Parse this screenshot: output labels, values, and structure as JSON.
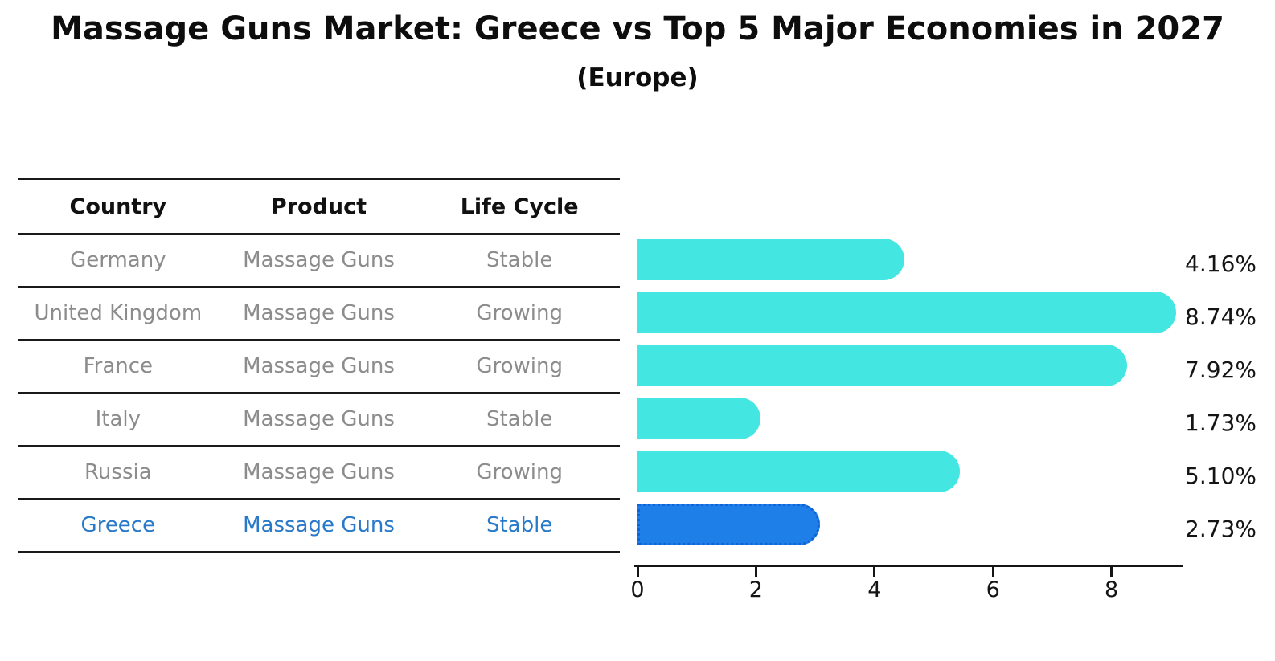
{
  "header": {
    "title": "Massage Guns Market: Greece vs Top 5 Major Economies in 2027",
    "subtitle": "(Europe)"
  },
  "table": {
    "columns": [
      "Country",
      "Product",
      "Life Cycle"
    ],
    "rows": [
      {
        "country": "Germany",
        "product": "Massage Guns",
        "life_cycle": "Stable",
        "highlight": false
      },
      {
        "country": "United Kingdom",
        "product": "Massage Guns",
        "life_cycle": "Growing",
        "highlight": false
      },
      {
        "country": "France",
        "product": "Massage Guns",
        "life_cycle": "Growing",
        "highlight": false
      },
      {
        "country": "Italy",
        "product": "Massage Guns",
        "life_cycle": "Stable",
        "highlight": false
      },
      {
        "country": "Russia",
        "product": "Massage Guns",
        "life_cycle": "Growing",
        "highlight": false
      },
      {
        "country": "Greece",
        "product": "Massage Guns",
        "life_cycle": "Stable",
        "highlight": true
      }
    ]
  },
  "chart_data": {
    "type": "bar",
    "orientation": "horizontal",
    "title": "Massage Guns Market: Greece vs Top 5 Major Economies in 2027 (Europe)",
    "categories": [
      "Germany",
      "United Kingdom",
      "France",
      "Italy",
      "Russia",
      "Greece"
    ],
    "values": [
      4.16,
      8.74,
      7.92,
      1.73,
      5.1,
      2.73
    ],
    "value_labels": [
      "4.16%",
      "8.74%",
      "7.92%",
      "1.73%",
      "5.10%",
      "2.73%"
    ],
    "x_ticks": [
      0,
      2,
      4,
      6,
      8
    ],
    "x_tick_labels": [
      "0",
      "2",
      "4",
      "6",
      "8"
    ],
    "xlim": [
      0,
      9.2
    ],
    "grid": false,
    "legend": false,
    "highlight_category": "Greece",
    "bar_color": "#43e6e1",
    "highlight_color": "#1f7fe8",
    "highlight_border_color": "#1063d8",
    "text_color_default": "#8c8c8c",
    "text_color_highlight": "#2979c9"
  }
}
